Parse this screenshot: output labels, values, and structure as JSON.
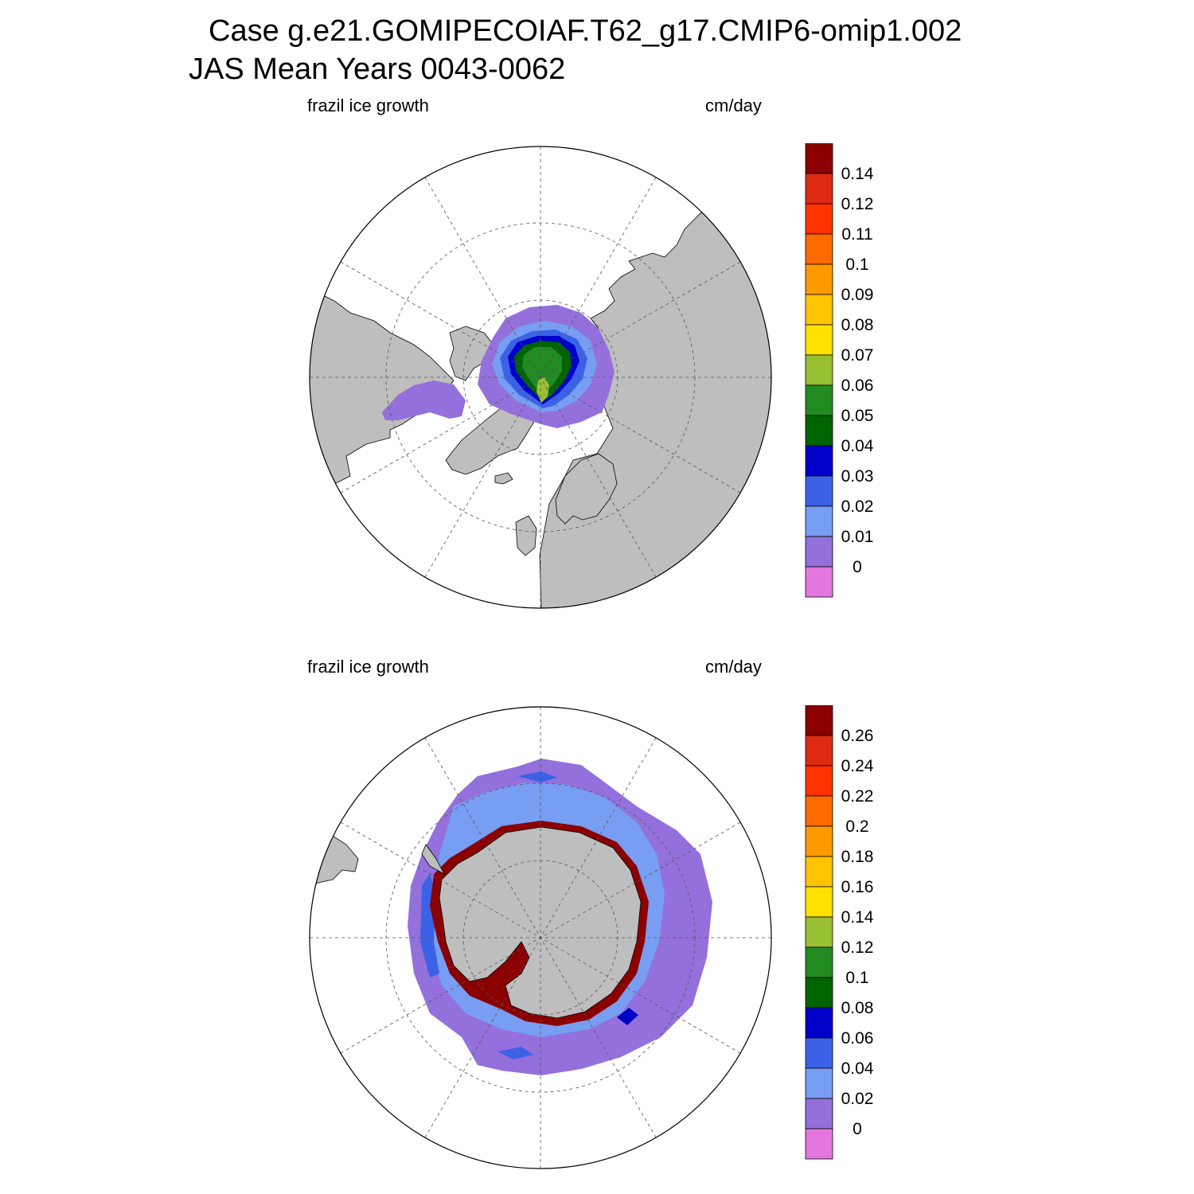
{
  "header": {
    "title_line1": "Case g.e21.GOMIPECOIAF.T62_g17.CMIP6-omip1.002",
    "title_line2": "JAS Mean   Years 0043-0062"
  },
  "panels": [
    {
      "variable": "frazil ice growth",
      "units": "cm/day",
      "hemisphere": "north",
      "colorbar_ticks": [
        "0",
        "0.01",
        "0.02",
        "0.03",
        "0.04",
        "0.05",
        "0.06",
        "0.07",
        "0.08",
        "0.09",
        "0.1",
        "0.11",
        "0.12",
        "0.14"
      ]
    },
    {
      "variable": "frazil ice growth",
      "units": "cm/day",
      "hemisphere": "south",
      "colorbar_ticks": [
        "0",
        "0.02",
        "0.04",
        "0.06",
        "0.08",
        "0.1",
        "0.12",
        "0.14",
        "0.16",
        "0.18",
        "0.2",
        "0.22",
        "0.24",
        "0.26"
      ]
    }
  ],
  "colors": {
    "land": "#bebebe",
    "no_data": "#ffffff",
    "palette": [
      "#e377df",
      "#9370db",
      "#779ef3",
      "#3b62e6",
      "#0000c8",
      "#006400",
      "#228b22",
      "#99bf33",
      "#ffe100",
      "#ffc300",
      "#ff9900",
      "#ff6a00",
      "#ff3300",
      "#dd2b12",
      "#8b0000"
    ]
  }
}
